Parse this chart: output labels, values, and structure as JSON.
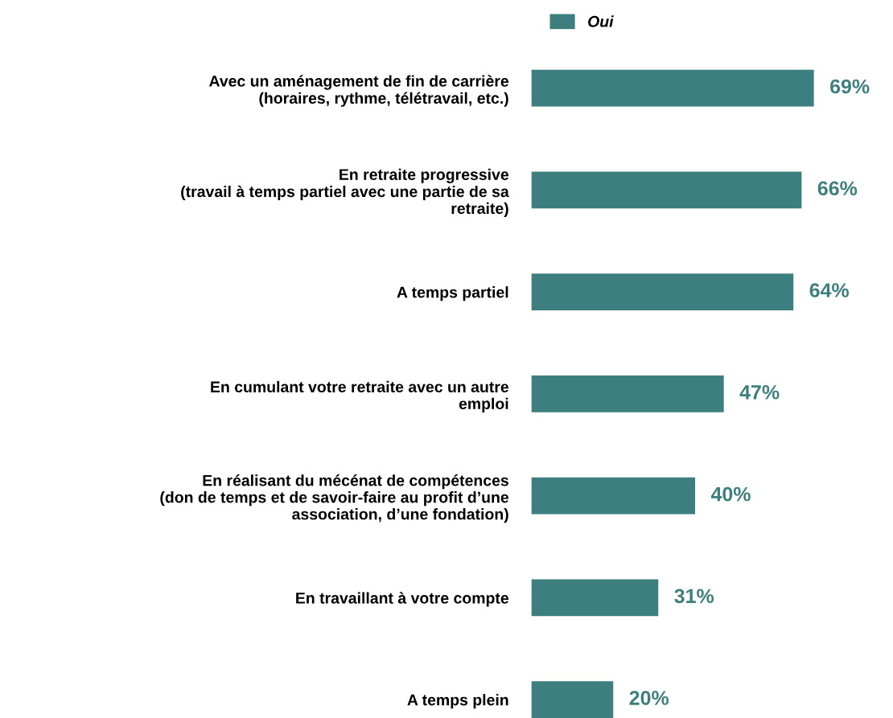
{
  "chart_data": {
    "type": "bar",
    "orientation": "horizontal",
    "categories": [
      "Avec un aménagement de fin de carrière\n(horaires, rythme, télétravail, etc.)",
      "En retraite progressive\n(travail à temps partiel avec une partie de sa\nretraite)",
      "A temps partiel",
      "En cumulant votre retraite avec un autre\nemploi",
      "En réalisant du mécénat de compétences\n(don de temps et de savoir-faire au profit d’une\nassociation, d’une fondation)",
      "En travaillant à votre compte",
      "A temps plein"
    ],
    "series": [
      {
        "name": "Oui",
        "color": "#3d7f7e",
        "values": [
          69,
          66,
          64,
          47,
          40,
          31,
          20
        ],
        "value_labels": [
          "69%",
          "66%",
          "64%",
          "47%",
          "40%",
          "31%",
          "20%"
        ]
      }
    ],
    "legend": "top"
  }
}
